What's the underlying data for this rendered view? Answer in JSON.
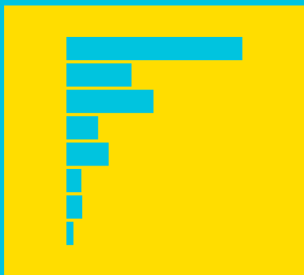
{
  "colors": {
    "frame": "#00C4DF",
    "background": "#FFDD00",
    "bar": "#00C4DF"
  },
  "chart_data": {
    "type": "bar",
    "orientation": "horizontal",
    "title": "",
    "xlabel": "",
    "ylabel": "",
    "categories": [
      "",
      "",
      "",
      "",
      "",
      "",
      "",
      ""
    ],
    "values": [
      100,
      37,
      49.5,
      18,
      24,
      8.5,
      9,
      4
    ],
    "xlim": [
      0,
      100
    ],
    "grid": false,
    "legend": "none"
  }
}
